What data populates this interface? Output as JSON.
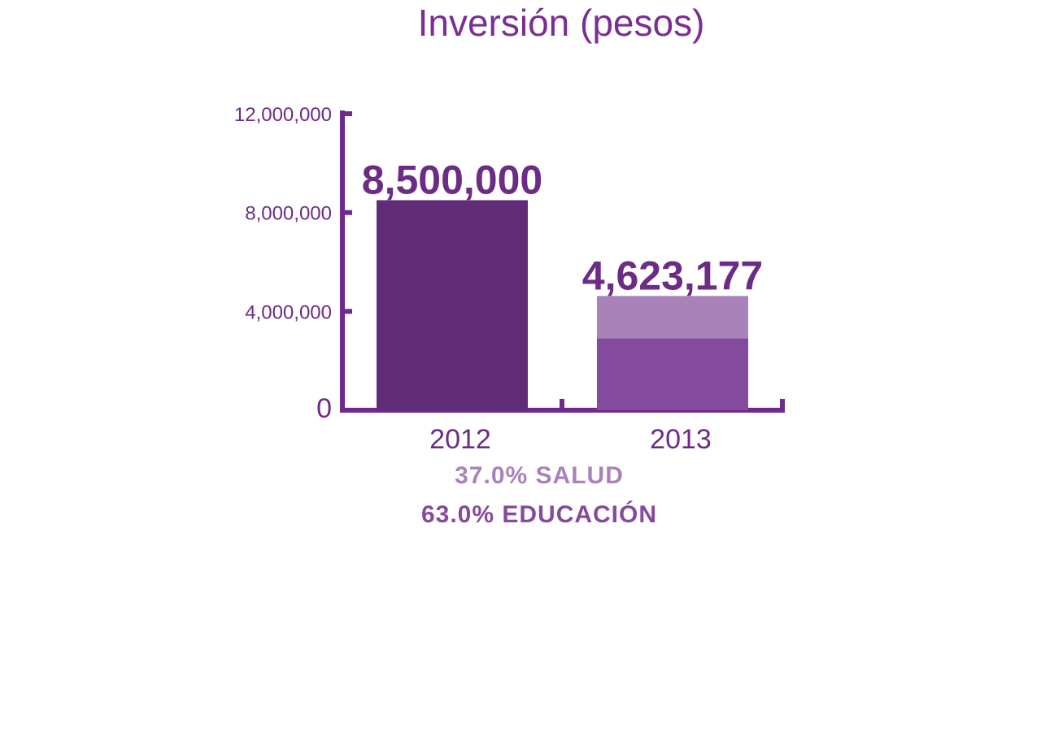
{
  "chart_data": {
    "type": "bar",
    "title": "Inversión (pesos)",
    "categories": [
      "2012",
      "2013"
    ],
    "ylim": [
      0,
      12000000
    ],
    "yticks": [
      {
        "value": 0,
        "label": "0"
      },
      {
        "value": 4000000,
        "label": "4,000,000"
      },
      {
        "value": 8000000,
        "label": "8,000,000"
      },
      {
        "value": 12000000,
        "label": "12,000,000"
      }
    ],
    "totals": [
      8500000,
      4623177
    ],
    "total_labels": [
      "8,500,000",
      "4,623,177"
    ],
    "series": [
      {
        "name": "2012",
        "values": [
          8500000,
          null
        ],
        "color": "#612c77"
      },
      {
        "name": "EDUCACIÓN",
        "values": [
          null,
          2912602
        ],
        "color": "#844a9d"
      },
      {
        "name": "SALUD",
        "values": [
          null,
          1710575
        ],
        "color": "#a882b8"
      }
    ],
    "legend": [
      {
        "text": "37.0% SALUD",
        "color": "#a882b8"
      },
      {
        "text": "63.0% EDUCACIÓN",
        "color": "#844a9d"
      }
    ],
    "axis_color": "#6e2a8e"
  }
}
